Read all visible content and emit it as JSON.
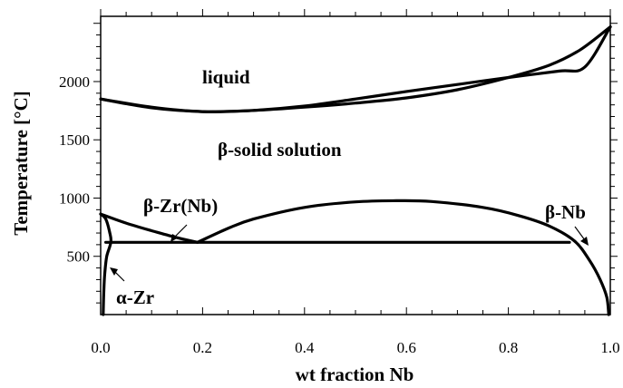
{
  "chart_data": {
    "type": "line",
    "title": "",
    "xlabel": "wt fraction Nb",
    "ylabel": "Temperature [°C]",
    "xlim": [
      0.0,
      1.0
    ],
    "ylim": [
      0,
      2560
    ],
    "x_tick_labels": [
      "0.0",
      "0.2",
      "0.4",
      "0.6",
      "0.8",
      "1.0"
    ],
    "x_tick_values": [
      0.0,
      0.2,
      0.4,
      0.6,
      0.8,
      1.0
    ],
    "y_tick_labels": [
      "500",
      "1000",
      "1500",
      "2000"
    ],
    "y_tick_values": [
      500,
      1000,
      1500,
      2000
    ],
    "grid": false,
    "series": [
      {
        "values": [
          [
            0.0,
            1850
          ],
          [
            0.05,
            1810
          ],
          [
            0.1,
            1775
          ],
          [
            0.15,
            1753
          ],
          [
            0.2,
            1742
          ],
          [
            0.22,
            1740
          ],
          [
            0.3,
            1752
          ],
          [
            0.4,
            1790
          ],
          [
            0.5,
            1850
          ],
          [
            0.6,
            1915
          ],
          [
            0.7,
            1975
          ],
          [
            0.8,
            2035
          ],
          [
            0.9,
            2090
          ],
          [
            0.95,
            2125
          ],
          [
            1.0,
            2470
          ]
        ]
      },
      {
        "values": [
          [
            0.0,
            1850
          ],
          [
            0.1,
            1780
          ],
          [
            0.2,
            1742
          ],
          [
            0.3,
            1752
          ],
          [
            0.4,
            1780
          ],
          [
            0.5,
            1815
          ],
          [
            0.6,
            1860
          ],
          [
            0.7,
            1930
          ],
          [
            0.8,
            2035
          ],
          [
            0.88,
            2140
          ],
          [
            0.94,
            2270
          ],
          [
            1.0,
            2470
          ]
        ]
      },
      {
        "values": [
          [
            0.0,
            863
          ],
          [
            0.05,
            785
          ],
          [
            0.1,
            720
          ],
          [
            0.15,
            660
          ],
          [
            0.19,
            620
          ]
        ]
      },
      {
        "values": [
          [
            0.19,
            620
          ],
          [
            0.25,
            740
          ],
          [
            0.3,
            820
          ],
          [
            0.4,
            920
          ],
          [
            0.5,
            967
          ],
          [
            0.58,
            977
          ],
          [
            0.65,
            970
          ],
          [
            0.75,
            920
          ],
          [
            0.82,
            850
          ],
          [
            0.88,
            760
          ],
          [
            0.93,
            630
          ],
          [
            0.96,
            460
          ],
          [
            0.98,
            300
          ],
          [
            0.993,
            150
          ],
          [
            0.997,
            0
          ]
        ]
      },
      {
        "values": [
          [
            0.01,
            620
          ],
          [
            0.92,
            620
          ]
        ]
      },
      {
        "values": [
          [
            0.0,
            863
          ],
          [
            0.01,
            820
          ],
          [
            0.018,
            700
          ],
          [
            0.02,
            620
          ],
          [
            0.012,
            500
          ],
          [
            0.008,
            350
          ],
          [
            0.006,
            180
          ],
          [
            0.005,
            0
          ]
        ]
      }
    ],
    "annotations": [
      {
        "text": "liquid"
      },
      {
        "text": "β-solid solution"
      },
      {
        "text": "β-Zr(Nb)"
      },
      {
        "text": "β-Nb"
      },
      {
        "text": "α-Zr"
      }
    ]
  }
}
